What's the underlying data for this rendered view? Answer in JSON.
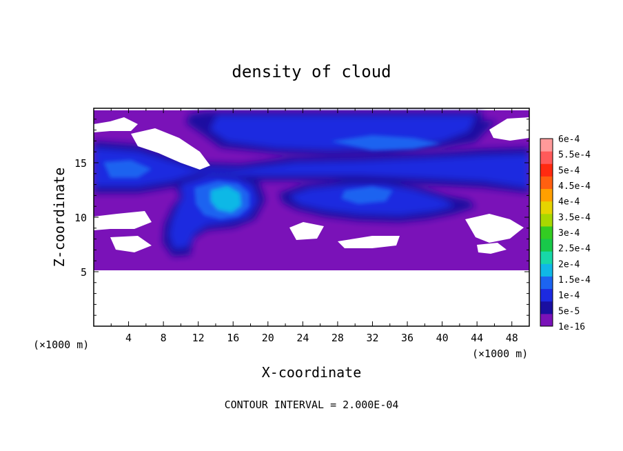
{
  "chart_data": {
    "type": "heatmap",
    "title": "density of cloud",
    "xlabel": "X-coordinate",
    "ylabel": "Z-coordinate",
    "x_unit_left": "(×1000 m)",
    "x_unit_right": "(×1000 m)",
    "xlim": [
      0,
      50
    ],
    "ylim": [
      0,
      20
    ],
    "x_ticks": [
      "4",
      "8",
      "12",
      "16",
      "20",
      "24",
      "28",
      "32",
      "36",
      "40",
      "44",
      "48"
    ],
    "y_ticks": [
      "5",
      "10",
      "15"
    ],
    "footer": "CONTOUR INTERVAL = 2.000E-04",
    "colorbar": {
      "labels": [
        "1e-16",
        "5e-5",
        "1e-4",
        "1.5e-4",
        "2e-4",
        "2.5e-4",
        "3e-4",
        "3.5e-4",
        "4e-4",
        "4.5e-4",
        "5e-4",
        "5.5e-4",
        "6e-4"
      ],
      "colors": [
        "#7a12b8",
        "#1a0fa0",
        "#1c2ae0",
        "#1c64f0",
        "#10b8e6",
        "#18d8a8",
        "#18c84a",
        "#33cc22",
        "#a8d800",
        "#e6d400",
        "#ffa000",
        "#ff6010",
        "#ff2a10",
        "#ff5a5a",
        "#ff9a9a"
      ]
    },
    "regions": {
      "cloud_layer": {
        "x": [
          0,
          50
        ],
        "z": [
          5.2,
          19.5
        ]
      },
      "upper_core": {
        "x": [
          13,
          48
        ],
        "z": [
          16,
          19.5
        ],
        "value": "1e-4"
      },
      "mid_band": {
        "x": [
          0,
          50
        ],
        "z": [
          12,
          16
        ],
        "value": "1e-4"
      },
      "plume": {
        "x": [
          8,
          19
        ],
        "z": [
          7,
          14
        ],
        "peak": "2e-4"
      },
      "lower_lobe": {
        "x": [
          21,
          44
        ],
        "z": [
          9.5,
          12.5
        ],
        "value": "1e-4"
      }
    }
  }
}
